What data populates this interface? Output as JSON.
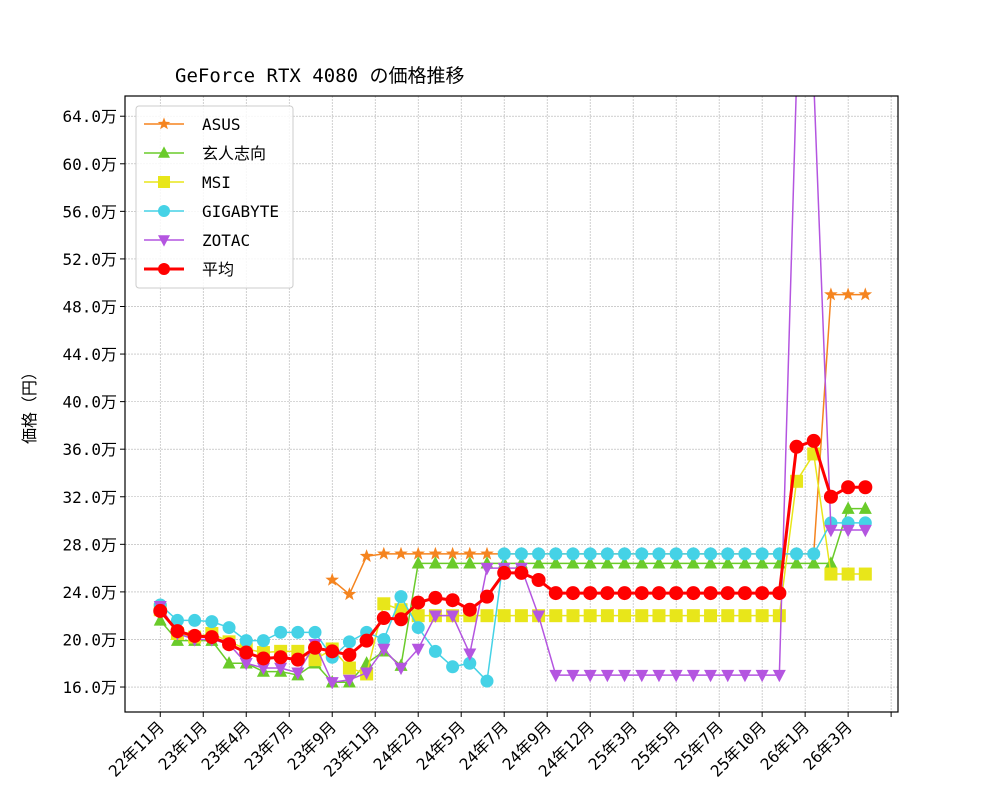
{
  "chart_data": {
    "type": "line",
    "title": "GeForce RTX 4080 の価格推移",
    "xlabel": "",
    "ylabel": "価格（円）",
    "ylim": [
      13.9,
      65.7
    ],
    "xlim": [
      -2.05,
      42.9
    ],
    "grid": true,
    "legend_position": "top-left",
    "yticks": [
      16,
      20,
      24,
      28,
      32,
      36,
      40,
      44,
      48,
      52,
      56,
      60,
      64
    ],
    "ytick_labels": [
      "16.0万",
      "20.0万",
      "24.0万",
      "28.0万",
      "32.0万",
      "36.0万",
      "40.0万",
      "44.0万",
      "48.0万",
      "52.0万",
      "56.0万",
      "60.0万",
      "64.0万"
    ],
    "xtick_labels": [
      "22年11月",
      "23年1月",
      "23年4月",
      "23年7月",
      "23年9月",
      "23年11月",
      "24年2月",
      "24年5月",
      "24年7月",
      "24年9月",
      "24年12月",
      "25年3月",
      "25年5月",
      "25年7月",
      "25年10月",
      "26年1月",
      "26年3月"
    ],
    "unit": "万円",
    "series": [
      {
        "name": "ASUS",
        "color": "#f5841f",
        "marker": "star",
        "width": 1.5,
        "values": [
          null,
          null,
          null,
          null,
          null,
          null,
          null,
          null,
          null,
          null,
          25.0,
          23.8,
          27.0,
          27.2,
          27.2,
          27.2,
          27.2,
          27.2,
          27.2,
          27.2,
          27.2,
          27.2,
          27.2,
          27.2,
          27.2,
          27.2,
          27.2,
          27.2,
          27.2,
          27.2,
          27.2,
          27.2,
          27.2,
          27.2,
          27.2,
          27.2,
          27.2,
          27.2,
          27.2,
          49.0,
          49.0,
          49.0
        ]
      },
      {
        "name": "玄人志向",
        "color": "#6acb2a",
        "marker": "triangle-up",
        "width": 1.5,
        "values": [
          21.6,
          19.9,
          19.9,
          19.9,
          18.0,
          18.0,
          17.3,
          17.3,
          17.0,
          18.0,
          16.4,
          16.4,
          18.0,
          19.0,
          17.8,
          26.4,
          26.4,
          26.4,
          26.4,
          26.4,
          26.4,
          26.4,
          26.4,
          26.4,
          26.4,
          26.4,
          26.4,
          26.4,
          26.4,
          26.4,
          26.4,
          26.4,
          26.4,
          26.4,
          26.4,
          26.4,
          26.4,
          26.4,
          26.4,
          26.4,
          31.0,
          31.0
        ]
      },
      {
        "name": "MSI",
        "color": "#e8e61a",
        "marker": "square",
        "width": 1.5,
        "values": [
          22.5,
          20.5,
          20.2,
          20.5,
          19.8,
          19.2,
          18.9,
          19.0,
          19.0,
          18.3,
          19.2,
          17.6,
          17.1,
          23.0,
          22.5,
          22.0,
          22.0,
          22.0,
          22.0,
          22.0,
          22.0,
          22.0,
          22.0,
          22.0,
          22.0,
          22.0,
          22.0,
          22.0,
          22.0,
          22.0,
          22.0,
          22.0,
          22.0,
          22.0,
          22.0,
          22.0,
          22.0,
          33.3,
          35.6,
          25.5,
          25.5,
          25.5
        ]
      },
      {
        "name": "GIGABYTE",
        "color": "#45d2e6",
        "marker": "circle",
        "width": 1.5,
        "values": [
          22.9,
          21.6,
          21.6,
          21.5,
          21.0,
          19.9,
          19.9,
          20.6,
          20.6,
          20.6,
          18.5,
          19.8,
          20.6,
          20.0,
          23.6,
          21.0,
          19.0,
          17.7,
          18.0,
          16.5,
          27.2,
          27.2,
          27.2,
          27.2,
          27.2,
          27.2,
          27.2,
          27.2,
          27.2,
          27.2,
          27.2,
          27.2,
          27.2,
          27.2,
          27.2,
          27.2,
          27.2,
          27.2,
          27.2,
          29.8,
          29.8,
          29.8
        ]
      },
      {
        "name": "ZOTAC",
        "color": "#b455e0",
        "marker": "triangle-down",
        "width": 1.5,
        "values": [
          22.8,
          20.5,
          20.0,
          20.0,
          19.6,
          18.0,
          17.6,
          17.6,
          17.2,
          19.6,
          16.4,
          16.6,
          17.2,
          19.2,
          17.6,
          19.2,
          22.0,
          22.0,
          18.8,
          26.0,
          26.0,
          26.0,
          22.0,
          17.0,
          17.0,
          17.0,
          17.0,
          17.0,
          17.0,
          17.0,
          17.0,
          17.0,
          17.0,
          17.0,
          17.0,
          17.0,
          17.0,
          67.0,
          67.0,
          29.2,
          29.2,
          29.2
        ]
      },
      {
        "name": "平均",
        "color": "#ff0000",
        "marker": "circle",
        "width": 3,
        "values": [
          22.4,
          20.7,
          20.3,
          20.2,
          19.6,
          18.9,
          18.4,
          18.5,
          18.3,
          19.3,
          19.0,
          18.7,
          19.9,
          21.8,
          21.7,
          23.1,
          23.5,
          23.3,
          22.5,
          23.6,
          25.6,
          25.6,
          25.0,
          23.9,
          23.9,
          23.9,
          23.9,
          23.9,
          23.9,
          23.9,
          23.9,
          23.9,
          23.9,
          23.9,
          23.9,
          23.9,
          23.9,
          36.2,
          36.7,
          32.0,
          32.8,
          32.8
        ]
      }
    ]
  }
}
